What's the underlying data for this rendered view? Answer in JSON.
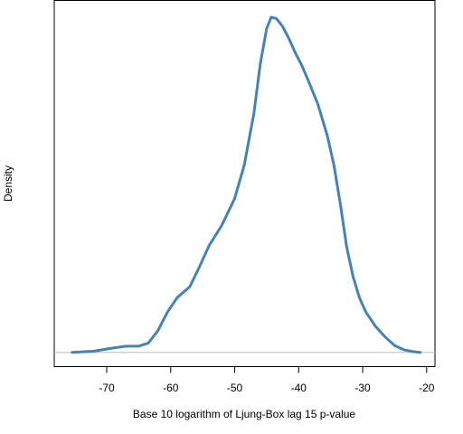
{
  "chart_data": {
    "type": "line",
    "title": "",
    "xlabel": "Base 10 logarithm of Ljung-Box lag 15 p-value",
    "ylabel": "Density",
    "xlim": [
      -78.2,
      -18.7
    ],
    "ylim": [
      -0.0023,
      0.0567
    ],
    "x_ticks": [
      -70,
      -60,
      -50,
      -40,
      -30,
      -20
    ],
    "x_tick_labels": [
      "-70",
      "-60",
      "-50",
      "-40",
      "-30",
      "-20"
    ],
    "y_ticks_shown": false,
    "grid": false,
    "legend": "none",
    "baseline_y": 0,
    "series": [
      {
        "color": "#4682B4",
        "baseline_color": "#BEBEBE",
        "x": [
          -75.4,
          -72.0,
          -69.0,
          -67.0,
          -65.0,
          -63.5,
          -62.0,
          -60.5,
          -59.0,
          -57.0,
          -55.5,
          -54.0,
          -52.0,
          -50.0,
          -48.5,
          -47.0,
          -46.0,
          -45.0,
          -44.3,
          -43.5,
          -42.5,
          -41.5,
          -40.5,
          -39.5,
          -38.5,
          -37.0,
          -35.5,
          -34.5,
          -33.5,
          -32.5,
          -31.5,
          -30.5,
          -29.5,
          -28.0,
          -26.5,
          -25.0,
          -23.5,
          -22.0,
          -21.0
        ],
        "y": [
          0.0,
          0.0002,
          0.0007,
          0.001,
          0.001,
          0.0015,
          0.0035,
          0.0065,
          0.0088,
          0.0106,
          0.0138,
          0.0172,
          0.0205,
          0.0248,
          0.0302,
          0.0385,
          0.0465,
          0.0522,
          0.054,
          0.0538,
          0.0525,
          0.0505,
          0.0482,
          0.0462,
          0.0438,
          0.04,
          0.0348,
          0.0302,
          0.024,
          0.017,
          0.0122,
          0.0088,
          0.0065,
          0.0042,
          0.0025,
          0.0011,
          0.0004,
          0.0001,
          0.0
        ]
      }
    ]
  }
}
